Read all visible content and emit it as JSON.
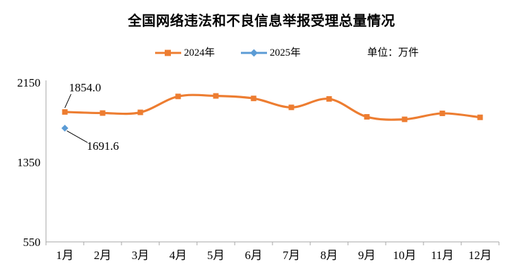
{
  "title": "全国网络违法和不良信息举报受理总量情况",
  "unit_label": "单位：万件",
  "legend": {
    "items": [
      {
        "label": "2024年",
        "color": "#ED7D31",
        "marker": "square"
      },
      {
        "label": "2025年",
        "color": "#5B9BD5",
        "marker": "diamond"
      }
    ]
  },
  "colors": {
    "axis": "#A6A6A6",
    "text": "#000000",
    "leader_line": "#000000",
    "series_2024": "#ED7D31",
    "series_2025": "#5B9BD5"
  },
  "chart_data": {
    "type": "line",
    "title": "全国网络违法和不良信息举报受理总量情况",
    "unit": "万件",
    "categories": [
      "1月",
      "2月",
      "3月",
      "4月",
      "5月",
      "6月",
      "7月",
      "8月",
      "9月",
      "10月",
      "11月",
      "12月"
    ],
    "series": [
      {
        "name": "2024年",
        "color": "#ED7D31",
        "marker": "square",
        "smooth": true,
        "values": [
          1854.0,
          1843,
          1850,
          2010,
          2015,
          1990,
          1900,
          1985,
          1805,
          1780,
          1840,
          1800
        ]
      },
      {
        "name": "2025年",
        "color": "#5B9BD5",
        "marker": "diamond",
        "smooth": false,
        "values": [
          1691.6
        ]
      }
    ],
    "data_labels": [
      {
        "series": 0,
        "index": 0,
        "text": "1854.0"
      },
      {
        "series": 1,
        "index": 0,
        "text": "1691.6"
      }
    ],
    "y_axis": {
      "min": 550,
      "max": 2150,
      "ticks": [
        2150,
        1350,
        550
      ]
    },
    "grid": false,
    "legend_position": "top"
  }
}
